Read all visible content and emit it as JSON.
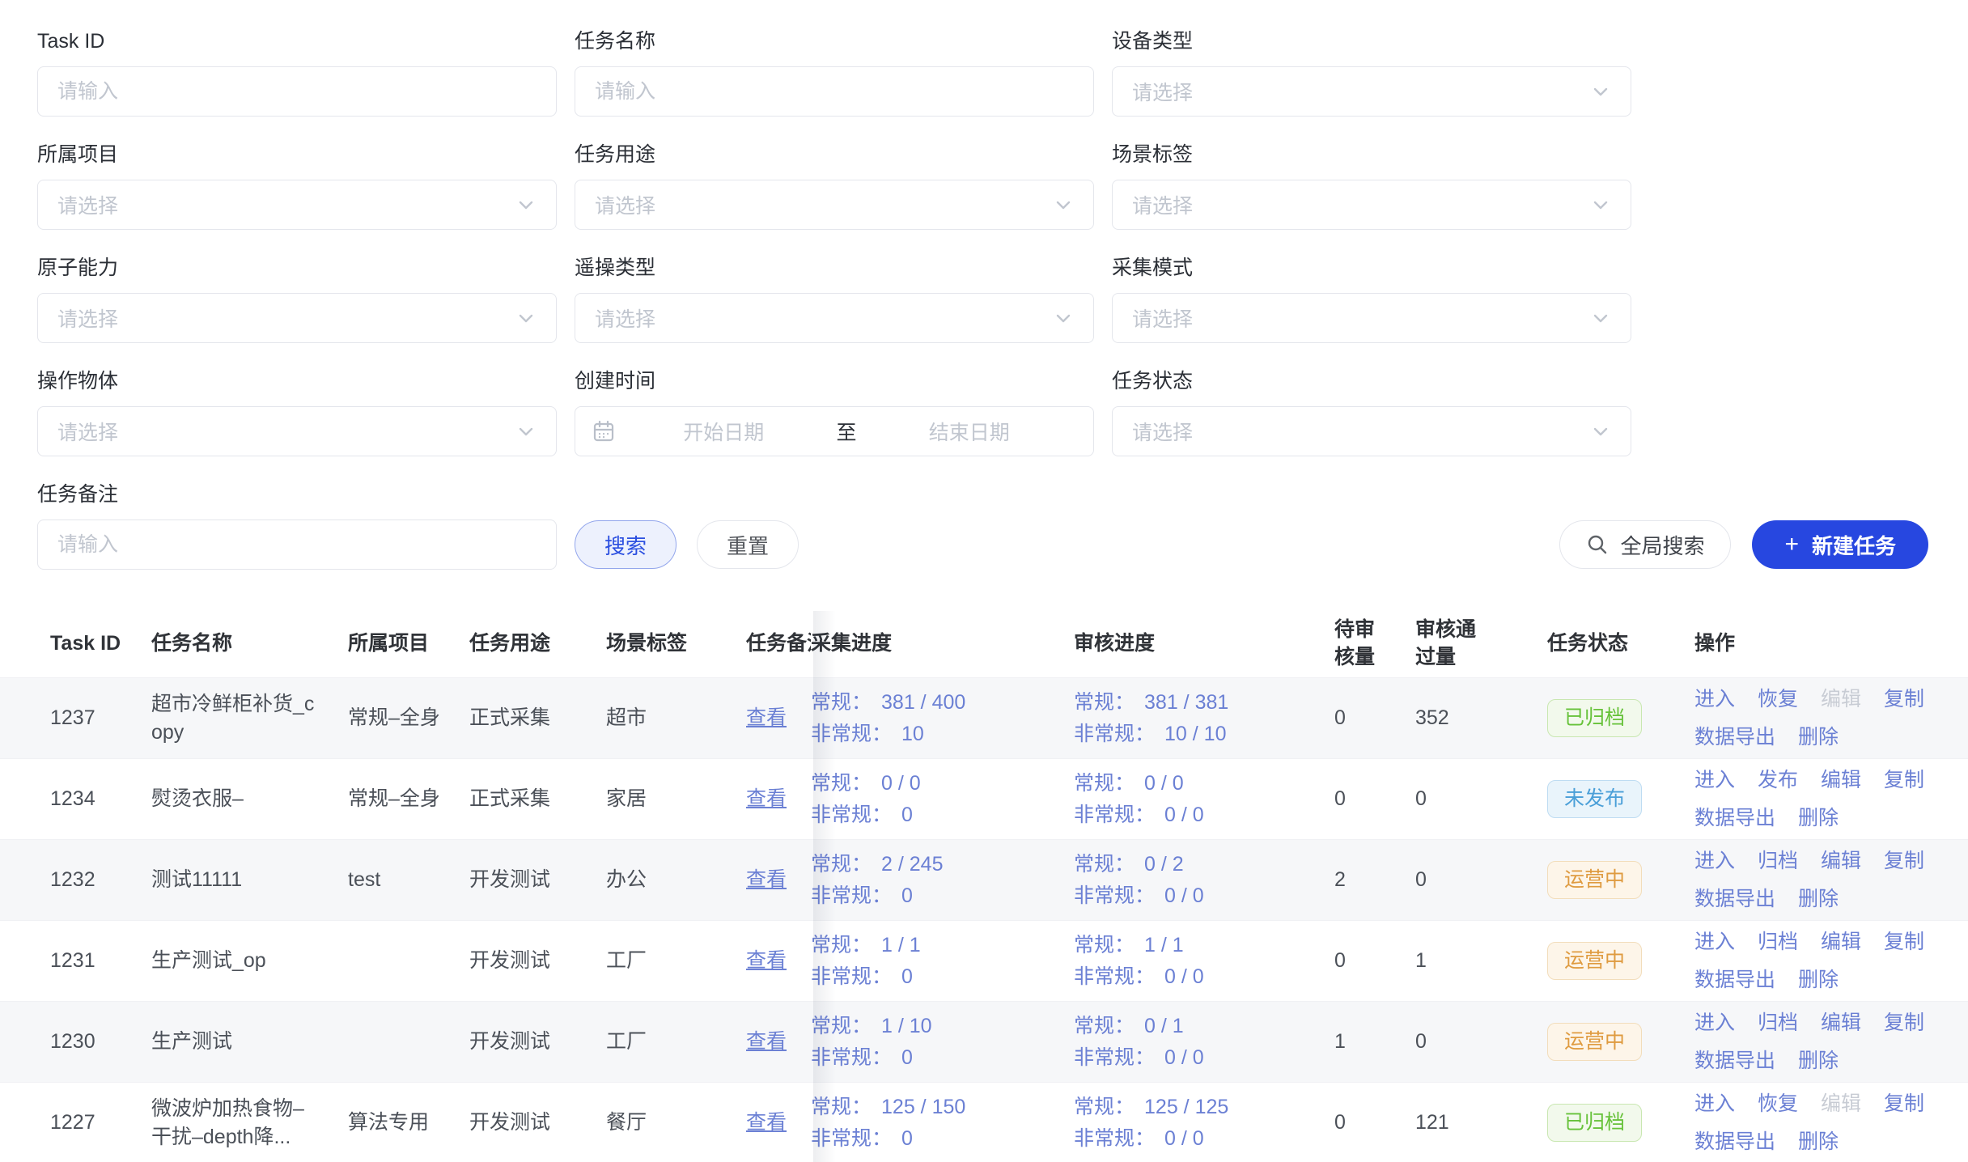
{
  "filters": {
    "rows": [
      [
        {
          "name": "task-id",
          "label": "Task ID",
          "type": "input",
          "placeholder": "请输入"
        },
        {
          "name": "task-name",
          "label": "任务名称",
          "type": "input",
          "placeholder": "请输入"
        },
        {
          "name": "device-type",
          "label": "设备类型",
          "type": "select",
          "placeholder": "请选择"
        }
      ],
      [
        {
          "name": "project",
          "label": "所属项目",
          "type": "select",
          "placeholder": "请选择"
        },
        {
          "name": "task-purpose",
          "label": "任务用途",
          "type": "select",
          "placeholder": "请选择"
        },
        {
          "name": "scene-tag",
          "label": "场景标签",
          "type": "select",
          "placeholder": "请选择"
        }
      ],
      [
        {
          "name": "atomic-capability",
          "label": "原子能力",
          "type": "select",
          "placeholder": "请选择"
        },
        {
          "name": "teleop-type",
          "label": "遥操类型",
          "type": "select",
          "placeholder": "请选择"
        },
        {
          "name": "collection-mode",
          "label": "采集模式",
          "type": "select",
          "placeholder": "请选择"
        }
      ],
      [
        {
          "name": "operation-object",
          "label": "操作物体",
          "type": "select",
          "placeholder": "请选择"
        },
        {
          "name": "create-time",
          "label": "创建时间",
          "type": "daterange",
          "start_placeholder": "开始日期",
          "separator": "至",
          "end_placeholder": "结束日期"
        },
        {
          "name": "task-status",
          "label": "任务状态",
          "type": "select",
          "placeholder": "请选择"
        }
      ]
    ],
    "remark": {
      "name": "task-remark",
      "label": "任务备注",
      "type": "input",
      "placeholder": "请输入"
    }
  },
  "toolbar": {
    "search_label": "搜索",
    "reset_label": "重置",
    "global_search_label": "全局搜索",
    "new_task_label": "新建任务",
    "new_task_icon": "+"
  },
  "table": {
    "columns": [
      "Task ID",
      "任务名称",
      "所属项目",
      "任务用途",
      "场景标签",
      "任务备注",
      "采集进度",
      "审核进度",
      "待审核量",
      "审核通过量",
      "任务状态",
      "操作"
    ],
    "progress_labels": {
      "regular": "常规：",
      "irregular": "非常规："
    },
    "view_link": "查看",
    "rows": [
      {
        "task_id": "1237",
        "name": "超市冷鲜柜补货_copy",
        "project": "常规–全身",
        "purpose": "正式采集",
        "scene": "超市",
        "collect_regular": "381 / 400",
        "collect_irregular": "10",
        "review_regular": "381 / 381",
        "review_irregular": "10 / 10",
        "pending": "0",
        "approved": "352",
        "status": {
          "label": "已归档",
          "type": "archived"
        },
        "actions": [
          {
            "label": "进入"
          },
          {
            "label": "恢复"
          },
          {
            "label": "编辑",
            "disabled": true
          },
          {
            "label": "复制"
          },
          {
            "label": "数据导出"
          },
          {
            "label": "删除"
          }
        ]
      },
      {
        "task_id": "1234",
        "name": "熨烫衣服–",
        "project": "常规–全身",
        "purpose": "正式采集",
        "scene": "家居",
        "collect_regular": "0 / 0",
        "collect_irregular": "0",
        "review_regular": "0 / 0",
        "review_irregular": "0 / 0",
        "pending": "0",
        "approved": "0",
        "status": {
          "label": "未发布",
          "type": "unpublished"
        },
        "actions": [
          {
            "label": "进入"
          },
          {
            "label": "发布"
          },
          {
            "label": "编辑"
          },
          {
            "label": "复制"
          },
          {
            "label": "数据导出"
          },
          {
            "label": "删除"
          }
        ]
      },
      {
        "task_id": "1232",
        "name": "测试11111",
        "project": "test",
        "purpose": "开发测试",
        "scene": "办公",
        "collect_regular": "2 / 245",
        "collect_irregular": "0",
        "review_regular": "0 / 2",
        "review_irregular": "0 / 0",
        "pending": "2",
        "approved": "0",
        "status": {
          "label": "运营中",
          "type": "operating"
        },
        "actions": [
          {
            "label": "进入"
          },
          {
            "label": "归档"
          },
          {
            "label": "编辑"
          },
          {
            "label": "复制"
          },
          {
            "label": "数据导出"
          },
          {
            "label": "删除"
          }
        ]
      },
      {
        "task_id": "1231",
        "name": "生产测试_op",
        "project": "",
        "purpose": "开发测试",
        "scene": "工厂",
        "collect_regular": "1 / 1",
        "collect_irregular": "0",
        "review_regular": "1 / 1",
        "review_irregular": "0 / 0",
        "pending": "0",
        "approved": "1",
        "status": {
          "label": "运营中",
          "type": "operating"
        },
        "actions": [
          {
            "label": "进入"
          },
          {
            "label": "归档"
          },
          {
            "label": "编辑"
          },
          {
            "label": "复制"
          },
          {
            "label": "数据导出"
          },
          {
            "label": "删除"
          }
        ]
      },
      {
        "task_id": "1230",
        "name": "生产测试",
        "project": "",
        "purpose": "开发测试",
        "scene": "工厂",
        "collect_regular": "1 / 10",
        "collect_irregular": "0",
        "review_regular": "0 / 1",
        "review_irregular": "0 / 0",
        "pending": "1",
        "approved": "0",
        "status": {
          "label": "运营中",
          "type": "operating"
        },
        "actions": [
          {
            "label": "进入"
          },
          {
            "label": "归档"
          },
          {
            "label": "编辑"
          },
          {
            "label": "复制"
          },
          {
            "label": "数据导出"
          },
          {
            "label": "删除"
          }
        ]
      },
      {
        "task_id": "1227",
        "name": "微波炉加热食物–干扰–depth降...",
        "project": "算法专用",
        "purpose": "开发测试",
        "scene": "餐厅",
        "collect_regular": "125 / 150",
        "collect_irregular": "0",
        "review_regular": "125 / 125",
        "review_irregular": "0 / 0",
        "pending": "0",
        "approved": "121",
        "status": {
          "label": "已归档",
          "type": "archived"
        },
        "actions": [
          {
            "label": "进入"
          },
          {
            "label": "恢复"
          },
          {
            "label": "编辑",
            "disabled": true
          },
          {
            "label": "复制"
          },
          {
            "label": "数据导出"
          },
          {
            "label": "删除"
          }
        ]
      }
    ]
  },
  "colors": {
    "primary": "#2747e0",
    "link": "#6b80d4",
    "status_archived": "#67c23a",
    "status_unpublished": "#4a9fd8",
    "status_operating": "#df9b40"
  }
}
